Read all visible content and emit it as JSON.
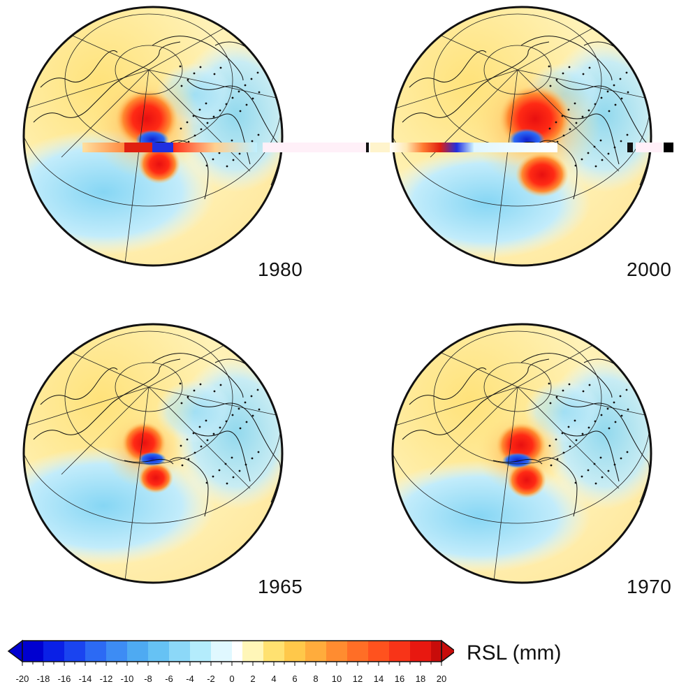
{
  "panels": [
    {
      "year": "1980"
    },
    {
      "year": "2000"
    },
    {
      "year": "1965"
    },
    {
      "year": "1970"
    }
  ],
  "colorbar": {
    "title": "RSL (mm)",
    "ticks": [
      "-20",
      "-18",
      "-16",
      "-14",
      "-12",
      "-10",
      "-8",
      "-6",
      "-4",
      "-2",
      "0",
      "2",
      "4",
      "6",
      "8",
      "10",
      "12",
      "14",
      "16",
      "18",
      "20"
    ],
    "min": -20,
    "max": 20,
    "colors": [
      "#0000d0",
      "#0a20e6",
      "#1a44f0",
      "#2c6af4",
      "#3d8cf4",
      "#4eaaf2",
      "#66c2f4",
      "#8cd8f8",
      "#b4ecfc",
      "#e0f8ff",
      "#ffffff",
      "#fff6b8",
      "#ffe170",
      "#ffc84a",
      "#ffac3c",
      "#ff8c30",
      "#ff6e26",
      "#ff521e",
      "#f83418",
      "#e81810",
      "#c80c0a"
    ]
  },
  "colors": {
    "land_outline": "#111111",
    "globe_outline": "#111111"
  }
}
